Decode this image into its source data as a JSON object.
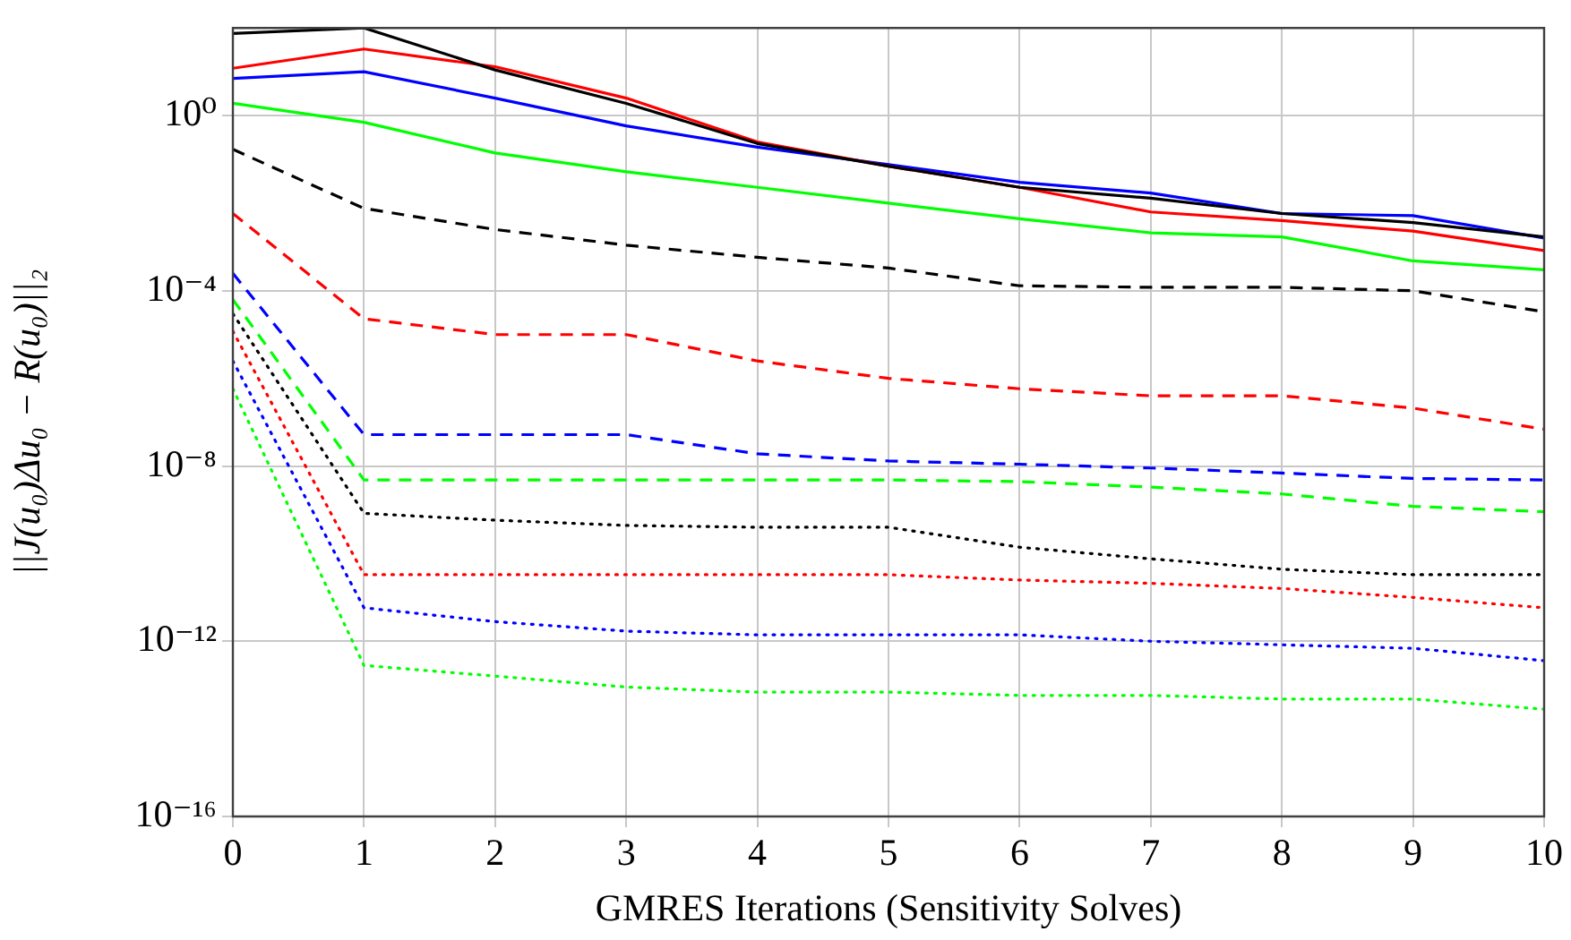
{
  "chart_data": {
    "type": "line",
    "xlabel": "GMRES Iterations (Sensitivity Solves)",
    "ylabel": "||J(u₀)Δu₀ − R(u₀)||₂",
    "x": [
      0,
      1,
      2,
      3,
      4,
      5,
      6,
      7,
      8,
      9,
      10
    ],
    "xlim": [
      0,
      10
    ],
    "xticks": [
      0,
      1,
      2,
      3,
      4,
      5,
      6,
      7,
      8,
      9,
      10
    ],
    "ylim": [
      1e-16,
      100
    ],
    "log": true,
    "yticks": [
      {
        "value": 1,
        "label": "10⁰"
      },
      {
        "value": 0.0001,
        "label": "10⁻⁴"
      },
      {
        "value": 1e-08,
        "label": "10⁻⁸"
      },
      {
        "value": 1e-12,
        "label": "10⁻¹²"
      },
      {
        "value": 1e-16,
        "label": "10⁻¹⁶"
      }
    ],
    "grid": true,
    "legend": false,
    "marker": "none",
    "series": [
      {
        "color": "#000000",
        "line_style": "solid",
        "values": [
          75,
          100,
          11,
          1.9,
          0.23,
          0.07,
          0.023,
          0.013,
          0.0058,
          0.0036,
          0.0017
        ]
      },
      {
        "color": "#ff0000",
        "line_style": "solid",
        "values": [
          12,
          33,
          13,
          2.5,
          0.25,
          0.07,
          0.023,
          0.0063,
          0.004,
          0.0023,
          0.00083
        ]
      },
      {
        "color": "#0000ff",
        "line_style": "solid",
        "values": [
          7,
          10,
          2.5,
          0.58,
          0.19,
          0.076,
          0.03,
          0.017,
          0.0058,
          0.0052,
          0.0016
        ]
      },
      {
        "color": "#00ff00",
        "line_style": "solid",
        "values": [
          1.9,
          0.7,
          0.14,
          0.052,
          0.023,
          0.01,
          0.0044,
          0.0021,
          0.0017,
          0.00048,
          0.0003
        ]
      },
      {
        "color": "#000000",
        "line_style": "dashed",
        "values": [
          0.17,
          0.0076,
          0.0025,
          0.0011,
          0.00058,
          0.00033,
          0.00013,
          0.00012,
          0.00012,
          0.0001,
          3.3e-05
        ]
      },
      {
        "color": "#ff0000",
        "line_style": "dashed",
        "values": [
          0.0058,
          2.3e-05,
          1e-05,
          1e-05,
          2.5e-06,
          1e-06,
          5.8e-07,
          4e-07,
          4e-07,
          2.1e-07,
          6.9e-08
        ]
      },
      {
        "color": "#0000ff",
        "line_style": "dashed",
        "values": [
          0.00025,
          5.2e-08,
          5.2e-08,
          5.2e-08,
          1.9e-08,
          1.3e-08,
          1.1e-08,
          9e-09,
          6.9e-09,
          5.2e-09,
          4.8e-09
        ]
      },
      {
        "color": "#00ff00",
        "line_style": "dashed",
        "values": [
          6.3e-05,
          4.8e-09,
          4.8e-09,
          4.8e-09,
          4.8e-09,
          4.8e-09,
          4.4e-09,
          3.3e-09,
          2.3e-09,
          1.2e-09,
          9e-10
        ]
      },
      {
        "color": "#000000",
        "line_style": "dotted",
        "values": [
          3e-05,
          8.3e-10,
          5.8e-10,
          4.4e-10,
          4e-10,
          4e-10,
          1.4e-10,
          7.6e-11,
          4.4e-11,
          3.3e-11,
          3.3e-11
        ]
      },
      {
        "color": "#ff0000",
        "line_style": "dotted",
        "values": [
          1.2e-05,
          3.3e-11,
          3.3e-11,
          3.3e-11,
          3.3e-11,
          3.3e-11,
          2.5e-11,
          2.1e-11,
          1.6e-11,
          1e-11,
          5.8e-12
        ]
      },
      {
        "color": "#0000ff",
        "line_style": "dotted",
        "values": [
          2.5e-06,
          5.8e-12,
          2.8e-12,
          1.7e-12,
          1.4e-12,
          1.4e-12,
          1.4e-12,
          1e-12,
          8.3e-13,
          6.9e-13,
          3.6e-13
        ]
      },
      {
        "color": "#00ff00",
        "line_style": "dotted",
        "values": [
          5.8e-07,
          2.8e-13,
          1.6e-13,
          9e-14,
          6.9e-14,
          6.9e-14,
          5.8e-14,
          5.8e-14,
          4.8e-14,
          4.8e-14,
          2.8e-14
        ]
      }
    ]
  }
}
